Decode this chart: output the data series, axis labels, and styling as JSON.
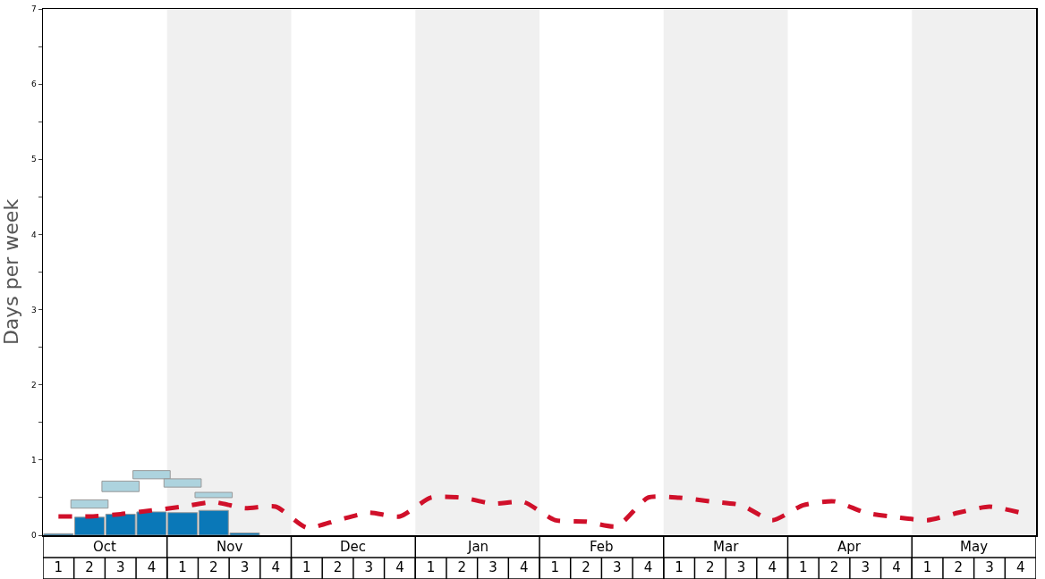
{
  "chart_data": {
    "type": "bar",
    "ylabel": "Days per week",
    "categories": [
      "1",
      "2",
      "3",
      "4",
      "1",
      "2",
      "3",
      "4",
      "1",
      "2",
      "3",
      "4",
      "1",
      "2",
      "3",
      "4",
      "1",
      "2",
      "3",
      "4",
      "1",
      "2",
      "3",
      "4",
      "1",
      "2",
      "3",
      "4",
      "1",
      "2",
      "3",
      "4"
    ],
    "annotations": [
      "Oct",
      "Nov",
      "Dec",
      "Jan",
      "Feb",
      "Mar",
      "Apr",
      "May"
    ],
    "ylim": [
      0,
      7
    ],
    "yticks": [
      0,
      {
        "value": 0.5,
        "label": null
      },
      1,
      {
        "value": 1.5,
        "label": null
      },
      2,
      {
        "value": 2.5,
        "label": null
      },
      3,
      {
        "value": 3.5,
        "label": null
      },
      4,
      {
        "value": 4.5,
        "label": null
      },
      5,
      {
        "value": 5.5,
        "label": null
      },
      6,
      {
        "value": 6.5,
        "label": null
      },
      7
    ],
    "series": [
      {
        "color": "#0a78b8",
        "values": [
          0.02,
          0.24,
          0.28,
          0.31,
          0.3,
          0.33,
          0.03,
          null,
          null,
          null,
          null,
          null,
          null,
          null,
          null,
          null,
          null,
          null,
          null,
          null,
          null,
          null,
          null,
          null,
          null,
          null,
          null,
          null,
          null,
          null,
          null,
          null
        ]
      },
      {
        "color": "#add3de",
        "base": [
          null,
          0.36,
          0.58,
          0.75,
          0.64,
          0.5,
          null,
          null,
          null,
          null,
          null,
          null,
          null,
          null,
          null,
          null,
          null,
          null,
          null,
          null,
          null,
          null,
          null,
          null,
          null,
          null,
          null,
          null,
          null,
          null,
          null,
          null
        ],
        "values": [
          null,
          0.11,
          0.14,
          0.11,
          0.11,
          0.07,
          null,
          null,
          null,
          null,
          null,
          null,
          null,
          null,
          null,
          null,
          null,
          null,
          null,
          null,
          null,
          null,
          null,
          null,
          null,
          null,
          null,
          null,
          null,
          null,
          null,
          null
        ]
      },
      {
        "type": "line",
        "color": "#d0102a",
        "line_style": "dashed",
        "values": [
          0.25,
          0.25,
          0.28,
          0.33,
          0.38,
          0.44,
          0.36,
          0.38,
          0.1,
          0.2,
          0.3,
          0.25,
          0.5,
          0.5,
          0.42,
          0.44,
          0.2,
          0.18,
          0.12,
          0.5,
          0.5,
          0.45,
          0.4,
          0.2,
          0.4,
          0.45,
          0.3,
          0.24,
          0.2,
          0.3,
          0.38,
          0.3
        ]
      }
    ]
  }
}
